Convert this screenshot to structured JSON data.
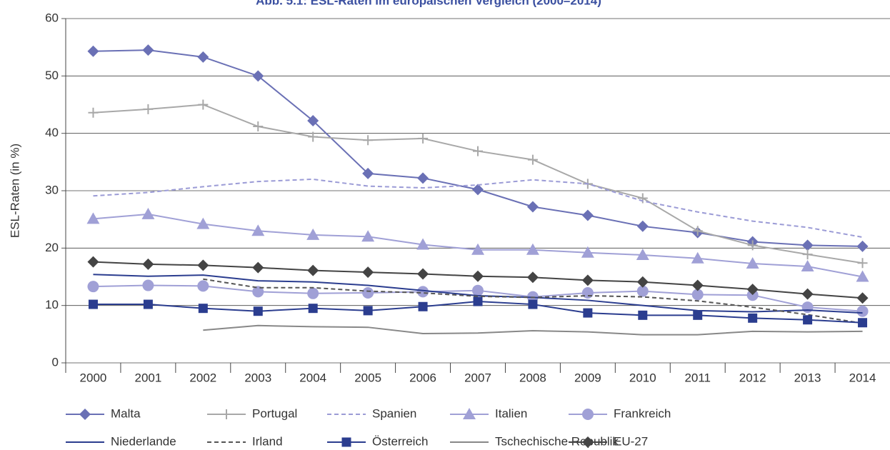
{
  "chart_data": {
    "type": "line",
    "title": "Abb. 5.1: ESL-Raten im europäischen Vergleich (2000–2014)",
    "y_label": "ESL-Raten (in %)",
    "categories": [
      "2000",
      "2001",
      "2002",
      "2003",
      "2004",
      "2005",
      "2006",
      "2007",
      "2008",
      "2009",
      "2010",
      "2011",
      "2012",
      "2013",
      "2014"
    ],
    "ylim": [
      0,
      60
    ],
    "yticks": [
      0,
      10,
      20,
      30,
      40,
      50,
      60
    ],
    "grid": true,
    "series": [
      {
        "name": "Malta",
        "color": "#6a70b5",
        "marker": "diamond",
        "dash": false,
        "values": [
          54.3,
          54.5,
          53.3,
          50,
          42.2,
          33,
          32.2,
          30.2,
          27.2,
          25.7,
          23.8,
          22.7,
          21.1,
          20.5,
          20.3
        ]
      },
      {
        "name": "Portugal",
        "color": "#a8a8a8",
        "marker": "plus",
        "dash": false,
        "values": [
          43.6,
          44.2,
          45,
          41.2,
          39.4,
          38.8,
          39.1,
          36.9,
          35.4,
          31.2,
          28.7,
          23,
          20.5,
          18.9,
          17.4
        ]
      },
      {
        "name": "Spanien",
        "color": "#9b9bd6",
        "marker": "none",
        "dash": true,
        "values": [
          29.1,
          29.7,
          30.7,
          31.6,
          32,
          30.8,
          30.5,
          31,
          31.9,
          31.2,
          28.2,
          26.3,
          24.7,
          23.6,
          21.9
        ]
      },
      {
        "name": "Italien",
        "color": "#a0a0d6",
        "marker": "triangle",
        "dash": false,
        "values": [
          25.1,
          25.9,
          24.2,
          23,
          22.3,
          22,
          20.6,
          19.7,
          19.7,
          19.2,
          18.8,
          18.2,
          17.3,
          16.8,
          15
        ]
      },
      {
        "name": "Frankreich",
        "color": "#a0a0d6",
        "marker": "circle",
        "dash": false,
        "values": [
          13.3,
          13.5,
          13.4,
          12.4,
          12.1,
          12.2,
          12.4,
          12.6,
          11.5,
          12.2,
          12.5,
          11.9,
          11.8,
          9.7,
          9.0
        ]
      },
      {
        "name": "Niederlande",
        "color": "#2b3d8f",
        "marker": "none",
        "dash": false,
        "values": [
          15.4,
          15.1,
          15.3,
          14.3,
          14.1,
          13.5,
          12.6,
          11.7,
          11.4,
          10.9,
          10,
          9.1,
          8.9,
          9.2,
          8.7
        ]
      },
      {
        "name": "Irland",
        "color": "#555555",
        "marker": "none",
        "dash": true,
        "values": [
          null,
          null,
          14.6,
          13.1,
          13.1,
          12.5,
          12.2,
          11.6,
          11.4,
          11.7,
          11.5,
          10.8,
          9.7,
          8.4,
          6.9
        ]
      },
      {
        "name": "Österreich",
        "color": "#2b3d8f",
        "marker": "square",
        "dash": false,
        "values": [
          10.2,
          10.2,
          9.5,
          9.0,
          9.5,
          9.1,
          9.8,
          10.7,
          10.2,
          8.7,
          8.3,
          8.3,
          7.8,
          7.5,
          7.0
        ]
      },
      {
        "name": "Tschechische Republik",
        "color": "#888888",
        "marker": "none",
        "dash": false,
        "values": [
          null,
          null,
          5.7,
          6.5,
          6.3,
          6.2,
          5.1,
          5.2,
          5.6,
          5.4,
          4.9,
          4.9,
          5.5,
          5.4,
          5.5
        ]
      },
      {
        "name": "EU-27",
        "color": "#444444",
        "marker": "diamond",
        "dash": false,
        "values": [
          17.6,
          17.2,
          17,
          16.6,
          16.1,
          15.8,
          15.5,
          15.1,
          14.9,
          14.4,
          14.1,
          13.5,
          12.8,
          12,
          11.3
        ]
      }
    ]
  }
}
